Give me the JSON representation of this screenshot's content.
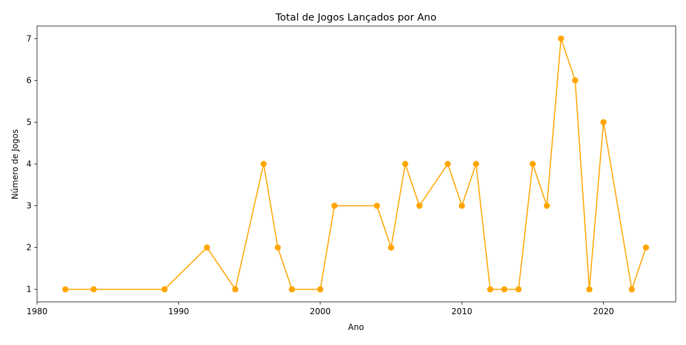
{
  "chart_data": {
    "type": "line",
    "title": "Total de Jogos Lançados por Ano",
    "xlabel": "Ano",
    "ylabel": "Número de Jogos",
    "x": [
      1982,
      1984,
      1989,
      1992,
      1994,
      1996,
      1997,
      1998,
      2000,
      2001,
      2004,
      2005,
      2006,
      2007,
      2009,
      2010,
      2011,
      2012,
      2013,
      2014,
      2015,
      2016,
      2017,
      2018,
      2019,
      2020,
      2022,
      2023
    ],
    "y": [
      1,
      1,
      1,
      2,
      1,
      4,
      2,
      1,
      1,
      3,
      3,
      2,
      4,
      3,
      4,
      3,
      4,
      1,
      1,
      1,
      4,
      3,
      7,
      6,
      1,
      5,
      1,
      2
    ],
    "xlim": [
      1980.0,
      2025.1
    ],
    "ylim": [
      0.7,
      7.3
    ],
    "xticks": [
      "1980",
      "1990",
      "2000",
      "2010",
      "2020"
    ],
    "yticks": [
      "1",
      "2",
      "3",
      "4",
      "5",
      "6",
      "7"
    ],
    "grid": false,
    "legend": "none",
    "colors": {
      "line": "#FFA500",
      "marker": "#FFA500",
      "axis": "#000000"
    }
  }
}
